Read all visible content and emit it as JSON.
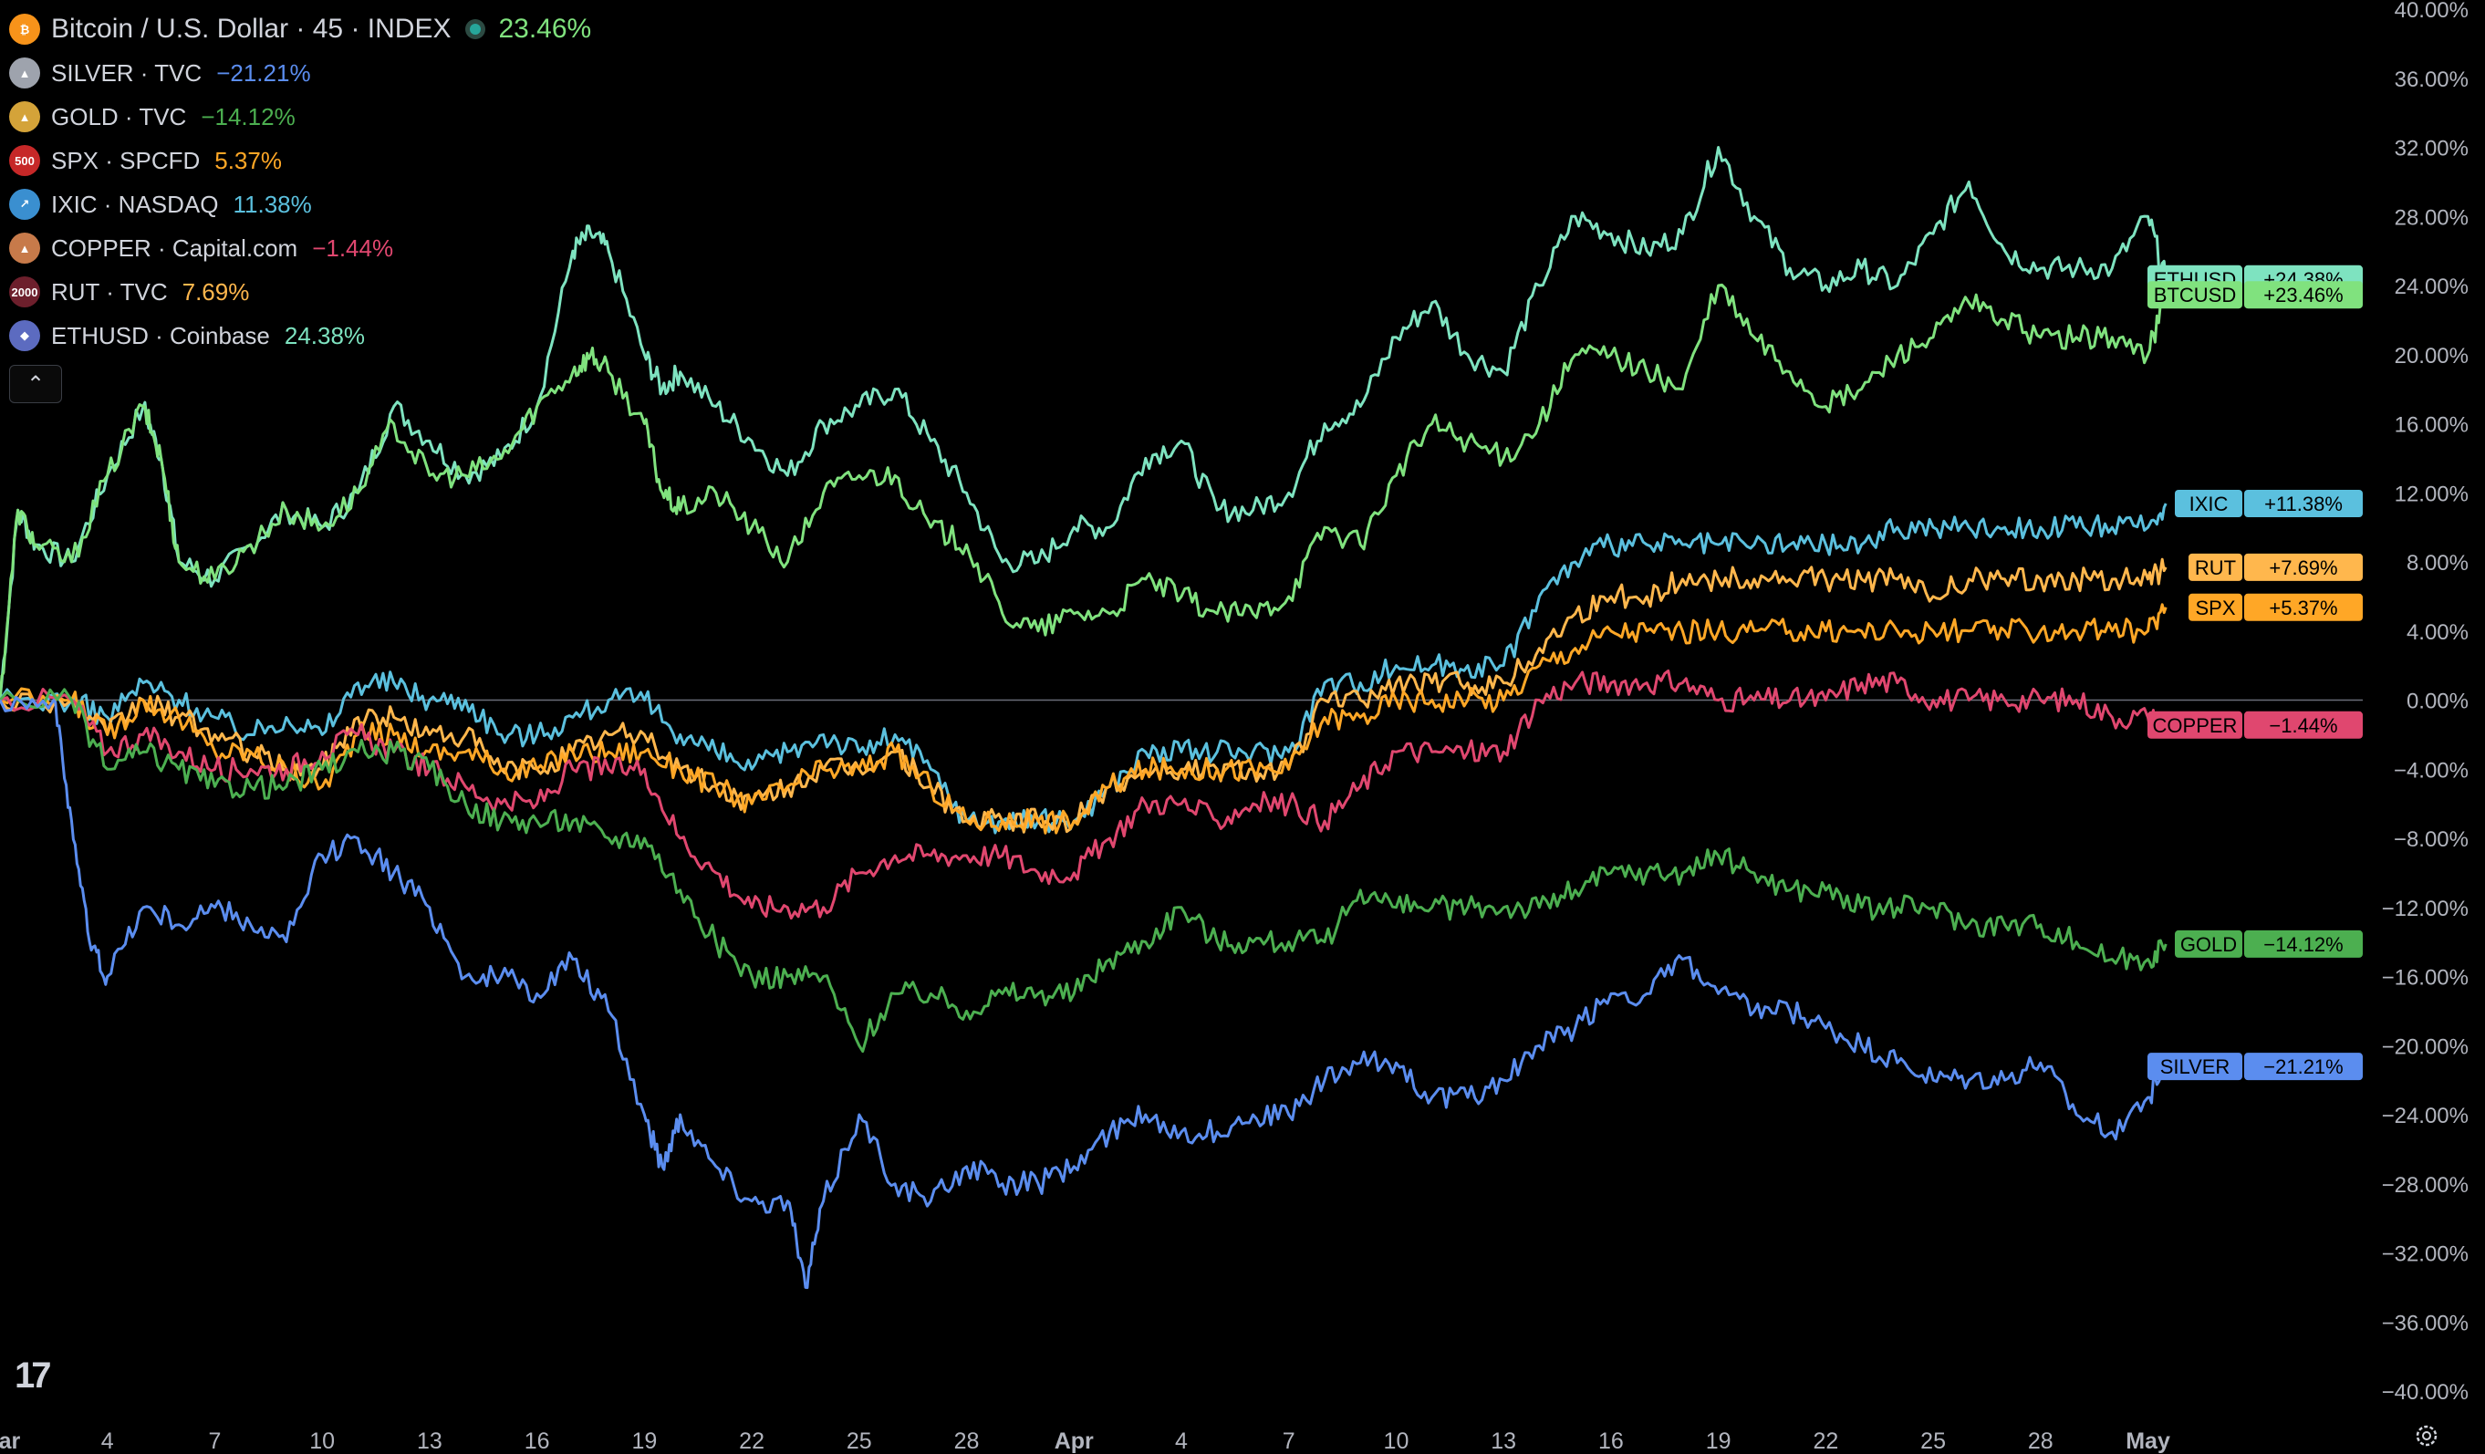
{
  "legend": {
    "main": {
      "name": "Bitcoin / U.S. Dollar · 45 · INDEX",
      "change": "23.46%",
      "color": "#80e27e",
      "icon": "bitcoin-icon",
      "icon_color": "#f7931a",
      "icon_glyph": "₿"
    },
    "items": [
      {
        "name": "SILVER · TVC",
        "change": "−21.21%",
        "color": "#5b8def",
        "icon": "silver-bars-icon",
        "icon_color": "#9ea3ad",
        "icon_glyph": "▲"
      },
      {
        "name": "GOLD · TVC",
        "change": "−14.12%",
        "color": "#4caf50",
        "icon": "gold-bars-icon",
        "icon_color": "#d4a339",
        "icon_glyph": "▲"
      },
      {
        "name": "SPX · SPCFD",
        "change": "5.37%",
        "color": "#ffa726",
        "icon": "spx-500-icon",
        "icon_color": "#c62828",
        "icon_glyph": "500"
      },
      {
        "name": "IXIC · NASDAQ",
        "change": "11.38%",
        "color": "#5bc0de",
        "icon": "nasdaq-icon",
        "icon_color": "#3a8fd0",
        "icon_glyph": "↗"
      },
      {
        "name": "COPPER · Capital.com",
        "change": "−1.44%",
        "color": "#e0476f",
        "icon": "copper-bars-icon",
        "icon_color": "#c77a4a",
        "icon_glyph": "▲"
      },
      {
        "name": "RUT · TVC",
        "change": "7.69%",
        "color": "#ffb74d",
        "icon": "russell-2000-icon",
        "icon_color": "#6d1f2c",
        "icon_glyph": "2000"
      },
      {
        "name": "ETHUSD · Coinbase",
        "change": "24.38%",
        "color": "#7ee3c0",
        "icon": "ethereum-icon",
        "icon_color": "#5c6bc0",
        "icon_glyph": "◆"
      }
    ],
    "collapse_label": "⌃"
  },
  "chart_data": {
    "type": "line",
    "y_unit": "%",
    "ylim": [
      -40,
      40
    ],
    "y_ticks": [
      "40.00%",
      "36.00%",
      "32.00%",
      "28.00%",
      "24.00%",
      "20.00%",
      "16.00%",
      "12.00%",
      "8.00%",
      "4.00%",
      "0.00%",
      "−4.00%",
      "−8.00%",
      "−12.00%",
      "−16.00%",
      "−20.00%",
      "−24.00%",
      "−28.00%",
      "−32.00%",
      "−36.00%",
      "−40.00%"
    ],
    "y_tick_values": [
      40,
      36,
      32,
      28,
      24,
      20,
      16,
      12,
      8,
      4,
      0,
      -4,
      -8,
      -12,
      -16,
      -20,
      -24,
      -28,
      -32,
      -36,
      -40
    ],
    "x_ticks": [
      "Mar",
      "4",
      "7",
      "10",
      "13",
      "16",
      "19",
      "22",
      "25",
      "28",
      "Apr",
      "4",
      "7",
      "10",
      "13",
      "16",
      "19",
      "22",
      "25",
      "28",
      "May"
    ],
    "x_tick_values": [
      0,
      3,
      6,
      9,
      12,
      15,
      18,
      21,
      24,
      27,
      30,
      33,
      36,
      39,
      42,
      45,
      48,
      51,
      54,
      57,
      60
    ],
    "xlim": [
      0,
      66
    ],
    "x_unit": "days since Mar 1",
    "grid": false,
    "zero_line": true,
    "series": [
      {
        "name": "ETHUSD",
        "tag": "+24.38%",
        "color": "#7ee3c0",
        "label_color": "#7ee3c0",
        "x": [
          0,
          0.5,
          1,
          2,
          3,
          4,
          4.5,
          5,
          6,
          7,
          8,
          9,
          10,
          11,
          12,
          13,
          14,
          15,
          16,
          16.5,
          17,
          18,
          18.5,
          19,
          20,
          21,
          22,
          23,
          24,
          25,
          26,
          27,
          28,
          29,
          30,
          31,
          32,
          33,
          34,
          35,
          36,
          37,
          38,
          39,
          40,
          41,
          42,
          43,
          44,
          45,
          46,
          47,
          48,
          49,
          50,
          51,
          52,
          53,
          54,
          55,
          56,
          57,
          58,
          59,
          60,
          60.5
        ],
        "y": [
          0,
          11,
          9,
          8,
          13,
          17,
          14,
          8,
          7,
          9,
          11,
          10,
          12,
          17,
          15,
          13,
          14,
          17,
          26,
          27,
          26,
          20,
          18,
          19,
          17,
          15,
          13,
          16,
          17,
          18,
          15,
          12,
          8,
          8,
          10,
          10,
          14,
          15,
          11,
          11,
          12,
          16,
          17,
          21,
          23,
          20,
          19,
          24,
          28,
          27,
          26,
          27,
          32,
          28,
          25,
          24,
          25,
          24,
          27,
          30,
          26,
          25,
          25,
          25,
          28,
          24.38
        ]
      },
      {
        "name": "BTCUSD",
        "tag": "+23.46%",
        "color": "#80e27e",
        "label_color": "#80e27e",
        "x": [
          0,
          0.5,
          1,
          2,
          3,
          4,
          4.5,
          5,
          6,
          7,
          8,
          9,
          10,
          11,
          12,
          13,
          14,
          15,
          16,
          16.5,
          17,
          18,
          18.5,
          19,
          20,
          21,
          22,
          23,
          24,
          25,
          26,
          27,
          28,
          29,
          30,
          31,
          32,
          33,
          34,
          35,
          36,
          37,
          38,
          39,
          40,
          41,
          42,
          43,
          44,
          45,
          46,
          47,
          48,
          49,
          50,
          51,
          52,
          53,
          54,
          55,
          56,
          57,
          58,
          59,
          60,
          60.5
        ],
        "y": [
          0,
          11,
          9,
          8,
          13,
          17,
          14,
          8,
          7,
          9,
          11,
          10,
          12,
          16,
          13,
          13,
          14,
          17,
          19,
          20,
          19,
          16,
          12,
          11,
          12,
          10,
          8,
          12,
          13,
          13,
          10,
          9,
          5,
          4,
          5,
          5,
          7,
          6,
          5,
          5,
          6,
          10,
          9,
          13,
          16,
          15,
          14,
          16,
          20,
          20,
          19,
          18,
          24,
          21,
          19,
          17,
          18,
          20,
          21,
          23,
          22,
          21,
          21,
          21,
          20,
          23.46
        ]
      },
      {
        "name": "IXIC",
        "tag": "+11.38%",
        "color": "#5bc0de",
        "label_color": "#5bc0de",
        "x": [
          0,
          2,
          3,
          4,
          5,
          6,
          7,
          8,
          9,
          10,
          11,
          12,
          13,
          14,
          15,
          16,
          17,
          18,
          19,
          20,
          21,
          22,
          23,
          24,
          25,
          26,
          27,
          28,
          29,
          30,
          31,
          32,
          33,
          34,
          35,
          36,
          37,
          38,
          39,
          40,
          41,
          42,
          43,
          44,
          45,
          46,
          47,
          48,
          49,
          50,
          51,
          52,
          53,
          54,
          55,
          56,
          57,
          58,
          59,
          60,
          60.5
        ],
        "y": [
          0,
          0,
          -1,
          1,
          0,
          -1,
          -2,
          -1,
          -2,
          1,
          1,
          0,
          0,
          -2,
          -2,
          -1,
          0,
          0,
          -2,
          -3,
          -4,
          -3,
          -2,
          -3,
          -2,
          -4,
          -7,
          -7,
          -7,
          -7,
          -5,
          -3,
          -3,
          -3,
          -3,
          -3,
          1,
          1,
          2,
          2,
          2,
          2,
          6,
          8,
          9,
          9,
          9,
          9,
          9,
          9,
          9,
          9,
          10,
          10,
          10,
          10,
          10,
          10,
          10,
          10,
          11.38
        ]
      },
      {
        "name": "RUT",
        "tag": "+7.69%",
        "color": "#ffb74d",
        "label_color": "#ffb74d",
        "x": [
          0,
          2,
          3,
          4,
          5,
          6,
          7,
          8,
          9,
          10,
          11,
          12,
          13,
          14,
          15,
          16,
          17,
          18,
          19,
          20,
          21,
          22,
          23,
          24,
          25,
          26,
          27,
          28,
          29,
          30,
          31,
          32,
          33,
          34,
          35,
          36,
          37,
          38,
          39,
          40,
          41,
          42,
          43,
          44,
          45,
          46,
          47,
          48,
          49,
          50,
          51,
          52,
          53,
          54,
          55,
          56,
          57,
          58,
          59,
          60,
          60.5
        ],
        "y": [
          0,
          0,
          -2,
          0,
          -1,
          -2,
          -3,
          -4,
          -4,
          -1,
          -1,
          -2,
          -2,
          -4,
          -4,
          -3,
          -2,
          -2,
          -4,
          -5,
          -6,
          -5,
          -4,
          -4,
          -3,
          -5,
          -7,
          -7,
          -7,
          -7,
          -5,
          -4,
          -4,
          -4,
          -4,
          -4,
          0,
          0,
          1,
          1,
          1,
          1,
          3,
          5,
          6,
          6,
          7,
          7,
          7,
          7,
          7,
          7,
          7,
          6,
          7,
          7,
          7,
          7,
          7,
          7,
          7.69
        ]
      },
      {
        "name": "SPX",
        "tag": "+5.37%",
        "color": "#ffa726",
        "label_color": "#ffa726",
        "x": [
          0,
          2,
          3,
          4,
          5,
          6,
          7,
          8,
          9,
          10,
          11,
          12,
          13,
          14,
          15,
          16,
          17,
          18,
          19,
          20,
          21,
          22,
          23,
          24,
          25,
          26,
          27,
          28,
          29,
          30,
          31,
          32,
          33,
          34,
          35,
          36,
          37,
          38,
          39,
          40,
          41,
          42,
          43,
          44,
          45,
          46,
          47,
          48,
          49,
          50,
          51,
          52,
          53,
          54,
          55,
          56,
          57,
          58,
          59,
          60,
          60.5
        ],
        "y": [
          0,
          0,
          -2,
          0,
          -1,
          -3,
          -3,
          -4,
          -5,
          -2,
          -2,
          -3,
          -3,
          -4,
          -4,
          -3,
          -3,
          -3,
          -4,
          -5,
          -6,
          -5,
          -4,
          -4,
          -3,
          -5,
          -7,
          -7,
          -7,
          -7,
          -5,
          -4,
          -4,
          -4,
          -4,
          -4,
          -1,
          -1,
          0,
          0,
          0,
          0,
          2,
          3,
          4,
          4,
          4,
          4,
          4,
          4,
          4,
          4,
          4,
          4,
          4,
          4,
          4,
          4,
          4,
          4,
          5.37
        ]
      },
      {
        "name": "COPPER",
        "tag": "−1.44%",
        "color": "#e0476f",
        "label_color": "#e0476f",
        "x": [
          0,
          2,
          3,
          4,
          5,
          6,
          7,
          8,
          9,
          10,
          11,
          12,
          13,
          14,
          15,
          16,
          17,
          18,
          19,
          20,
          21,
          22,
          23,
          24,
          25,
          26,
          27,
          28,
          29,
          30,
          31,
          32,
          33,
          34,
          35,
          36,
          37,
          38,
          39,
          40,
          41,
          42,
          43,
          44,
          45,
          46,
          47,
          48,
          49,
          50,
          51,
          52,
          53,
          54,
          55,
          56,
          57,
          58,
          59,
          60,
          60.5
        ],
        "y": [
          0,
          0,
          -3,
          -2,
          -3,
          -4,
          -4,
          -4,
          -3,
          -2,
          -3,
          -4,
          -5,
          -6,
          -6,
          -4,
          -4,
          -4,
          -8,
          -10,
          -12,
          -12,
          -12,
          -10,
          -9,
          -9,
          -9,
          -9,
          -10,
          -10,
          -8,
          -6,
          -6,
          -7,
          -6,
          -6,
          -7,
          -5,
          -3,
          -3,
          -3,
          -3,
          0,
          1,
          1,
          1,
          1,
          0,
          0,
          0,
          0,
          1,
          1,
          0,
          0,
          0,
          0,
          0,
          -1,
          -1,
          -1.44
        ]
      },
      {
        "name": "GOLD",
        "tag": "−14.12%",
        "color": "#4caf50",
        "label_color": "#4caf50",
        "x": [
          0,
          2,
          3,
          4,
          5,
          6,
          7,
          8,
          9,
          10,
          11,
          12,
          13,
          14,
          15,
          16,
          17,
          18,
          19,
          20,
          21,
          22,
          23,
          24,
          25,
          26,
          27,
          28,
          29,
          30,
          31,
          32,
          33,
          34,
          35,
          36,
          37,
          38,
          39,
          40,
          41,
          42,
          43,
          44,
          45,
          46,
          47,
          48,
          49,
          50,
          51,
          52,
          53,
          54,
          55,
          56,
          57,
          58,
          59,
          60,
          60.5
        ],
        "y": [
          0,
          0,
          -4,
          -3,
          -4,
          -5,
          -5,
          -5,
          -4,
          -3,
          -3,
          -4,
          -6,
          -7,
          -7,
          -7,
          -8,
          -8,
          -11,
          -14,
          -16,
          -16,
          -16,
          -20,
          -17,
          -17,
          -18,
          -17,
          -17,
          -17,
          -15,
          -14,
          -12,
          -14,
          -14,
          -14,
          -14,
          -11,
          -12,
          -12,
          -12,
          -12,
          -12,
          -11,
          -10,
          -10,
          -10,
          -9,
          -10,
          -11,
          -11,
          -12,
          -12,
          -12,
          -13,
          -13,
          -13,
          -14,
          -15,
          -15,
          -14.12
        ]
      },
      {
        "name": "SILVER",
        "tag": "−21.21%",
        "color": "#5b8def",
        "label_color": "#5b8def",
        "x": [
          0,
          1.5,
          2,
          2.5,
          3,
          4,
          5,
          6,
          7,
          8,
          9,
          10,
          11,
          12,
          13,
          14,
          15,
          16,
          17,
          18,
          18.5,
          19,
          20,
          21,
          22,
          22.5,
          23,
          24,
          25,
          26,
          27,
          28,
          29,
          30,
          31,
          32,
          33,
          34,
          35,
          36,
          37,
          38,
          39,
          40,
          41,
          42,
          43,
          44,
          45,
          46,
          47,
          48,
          49,
          50,
          51,
          52,
          53,
          54,
          55,
          56,
          57,
          58,
          59,
          60,
          60.5
        ],
        "y": [
          0,
          0,
          -7,
          -14,
          -16,
          -12,
          -13,
          -12,
          -13,
          -14,
          -9,
          -8,
          -10,
          -12,
          -16,
          -16,
          -17,
          -15,
          -18,
          -24,
          -27,
          -24,
          -27,
          -29,
          -29,
          -34,
          -29,
          -24,
          -28,
          -29,
          -27,
          -28,
          -28,
          -27,
          -25,
          -24,
          -25,
          -25,
          -24,
          -24,
          -22,
          -21,
          -21,
          -23,
          -23,
          -22,
          -20,
          -19,
          -17,
          -17,
          -15,
          -17,
          -18,
          -18,
          -19,
          -20,
          -21,
          -22,
          -22,
          -22,
          -21,
          -24,
          -25,
          -23,
          -21.21
        ]
      }
    ]
  }
}
